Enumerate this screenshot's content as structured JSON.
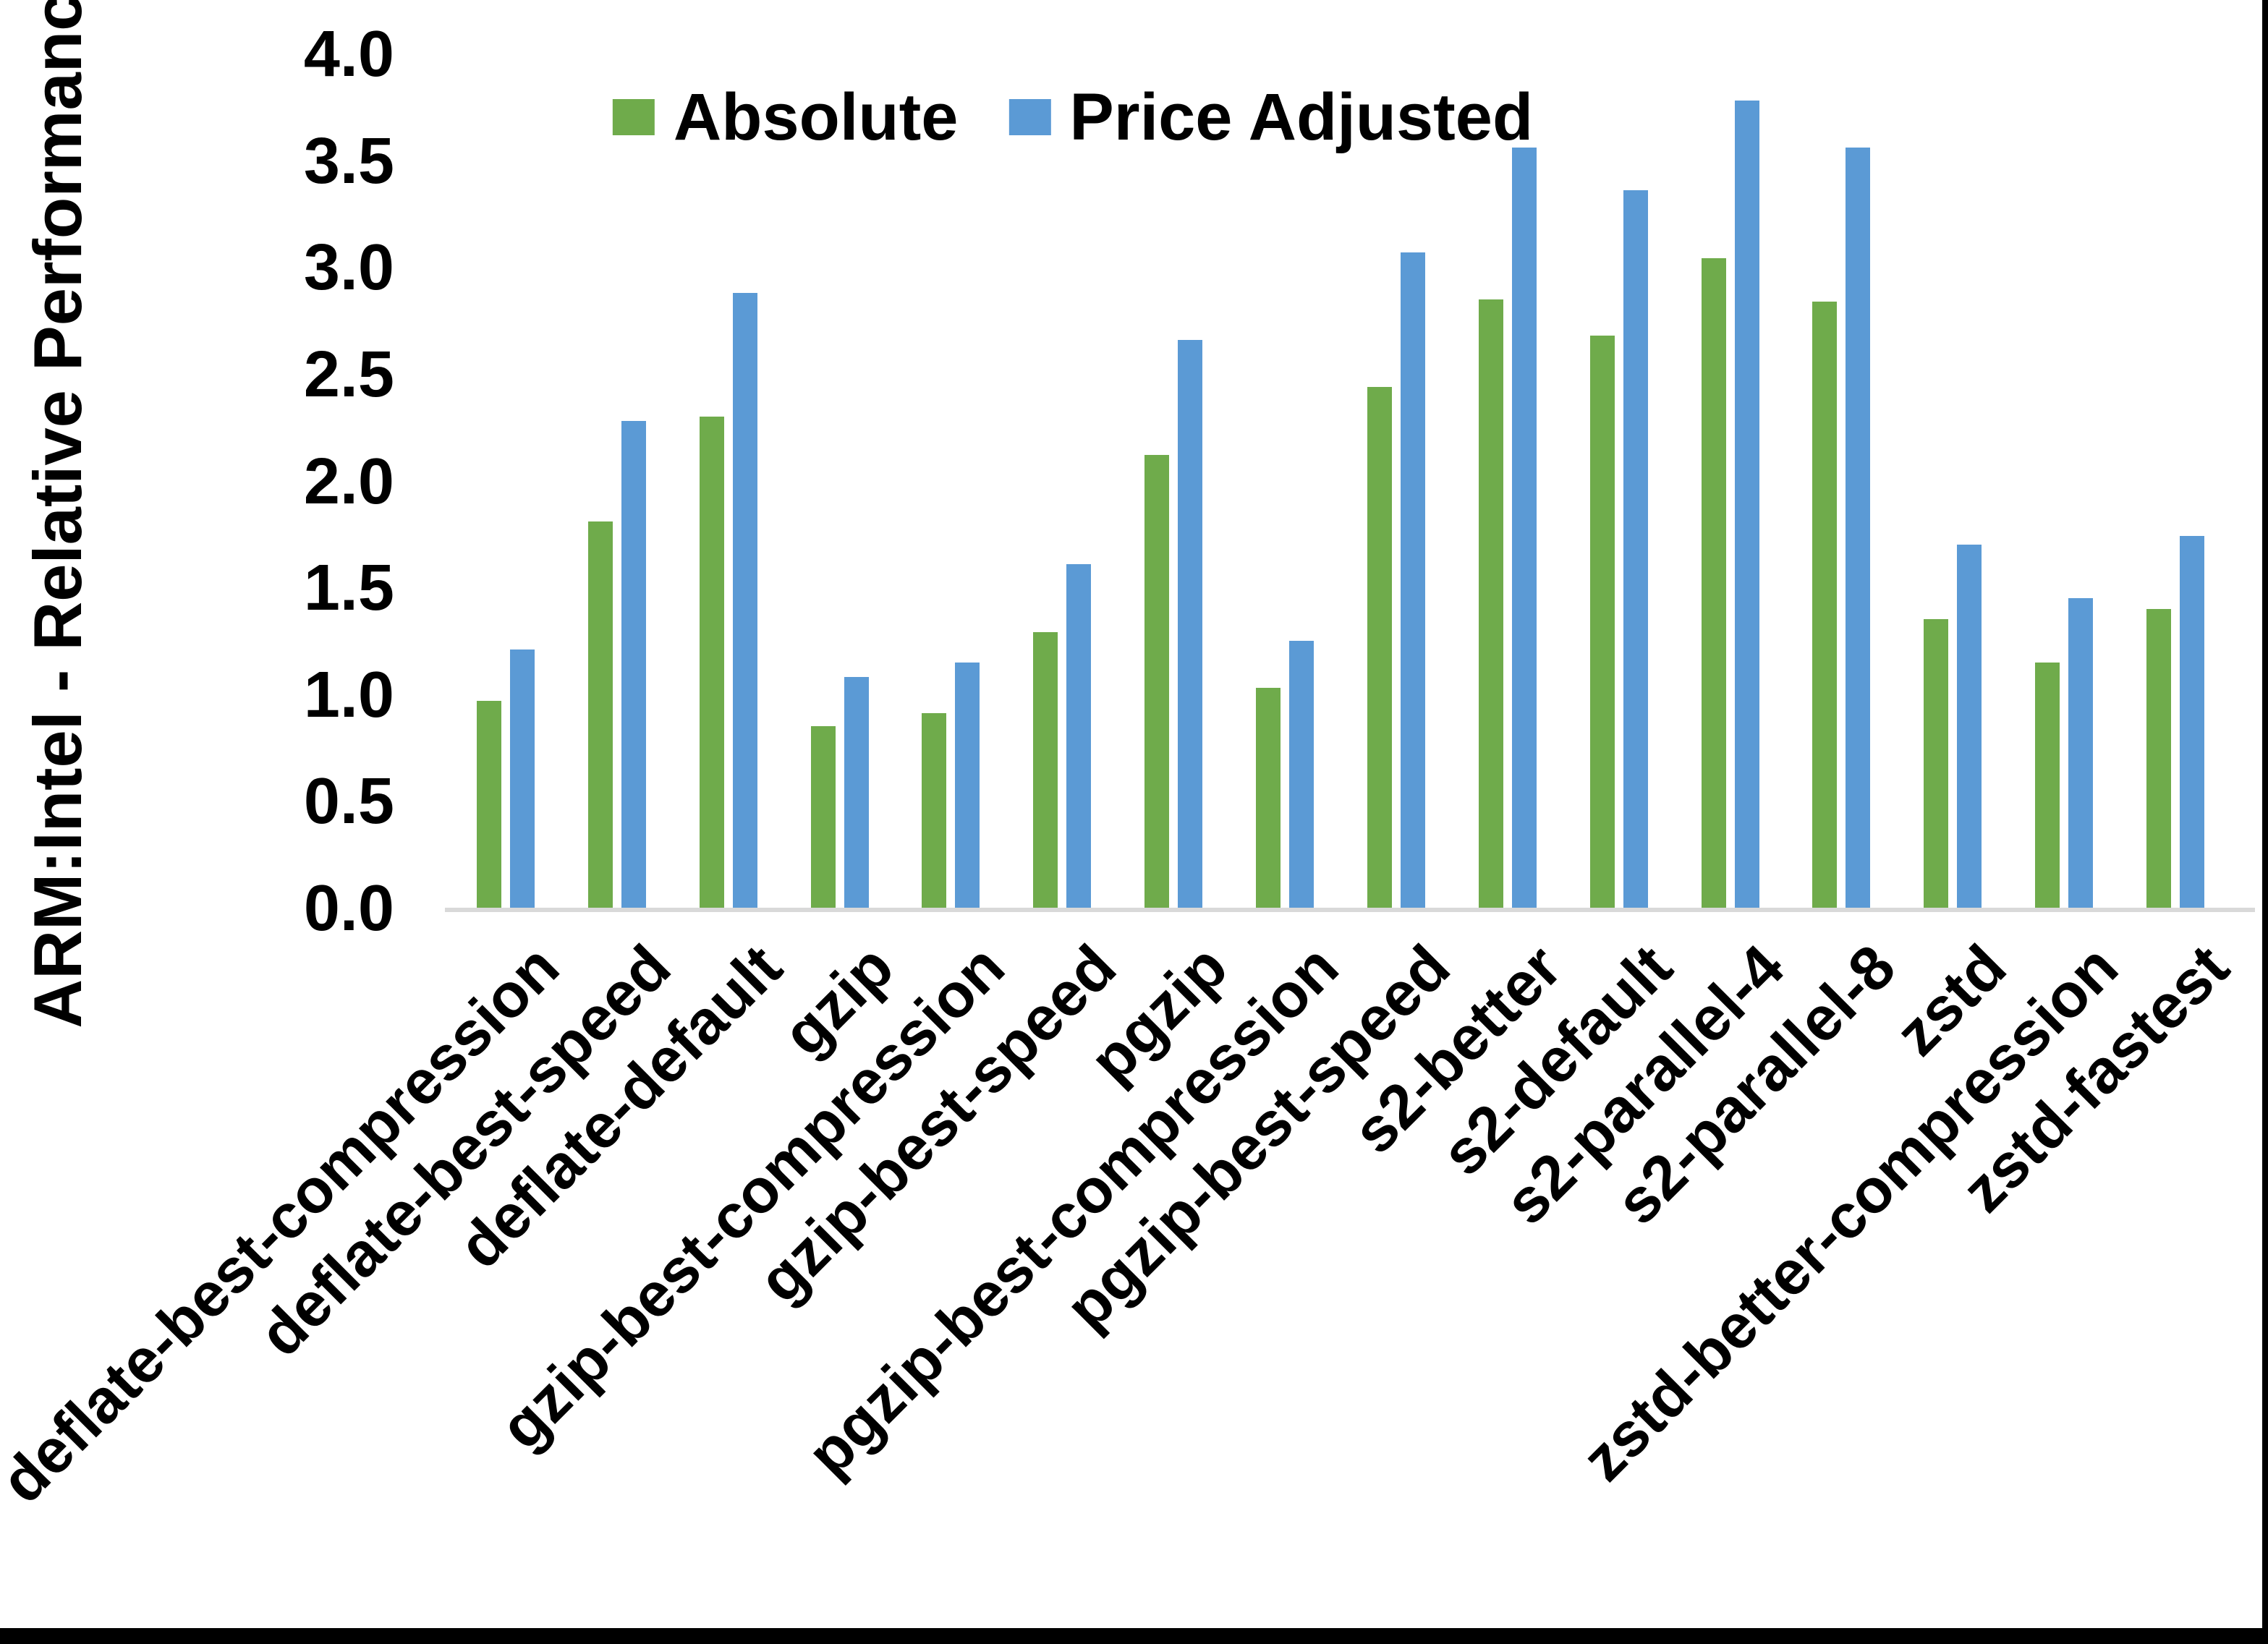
{
  "chart_data": {
    "type": "bar",
    "title": "",
    "ylabel": "ARM:Intel - Relative Performance",
    "xlabel": "",
    "ylim": [
      0.0,
      4.0
    ],
    "yticks": [
      "0.0",
      "0.5",
      "1.0",
      "1.5",
      "2.0",
      "2.5",
      "3.0",
      "3.5",
      "4.0"
    ],
    "grid": false,
    "legend_position": "top-center",
    "axis_line_color": "#d9d9d9",
    "border_color": "#000000",
    "categories": [
      "deflate-best-compression",
      "deflate-best-speed",
      "deflate-default",
      "gzip",
      "gzip-best-compression",
      "gzip-best-speed",
      "pgzip",
      "pgzip-best-compression",
      "pgzip-best-speed",
      "s2-better",
      "s2-default",
      "s2-parallel-4",
      "s2-parallel-8",
      "zstd",
      "zstd-better-compression",
      "zstd-fastest"
    ],
    "series": [
      {
        "name": "Absolute",
        "color": "#6fab4b",
        "values": [
          0.98,
          1.82,
          2.31,
          0.86,
          0.92,
          1.3,
          2.13,
          1.04,
          2.45,
          2.86,
          2.69,
          3.05,
          2.85,
          1.36,
          1.16,
          1.41
        ]
      },
      {
        "name": "Price Adjusted",
        "color": "#5b9ad5",
        "values": [
          1.22,
          2.29,
          2.89,
          1.09,
          1.16,
          1.62,
          2.67,
          1.26,
          3.08,
          3.57,
          3.37,
          3.79,
          3.57,
          1.71,
          1.46,
          1.75
        ]
      }
    ]
  }
}
